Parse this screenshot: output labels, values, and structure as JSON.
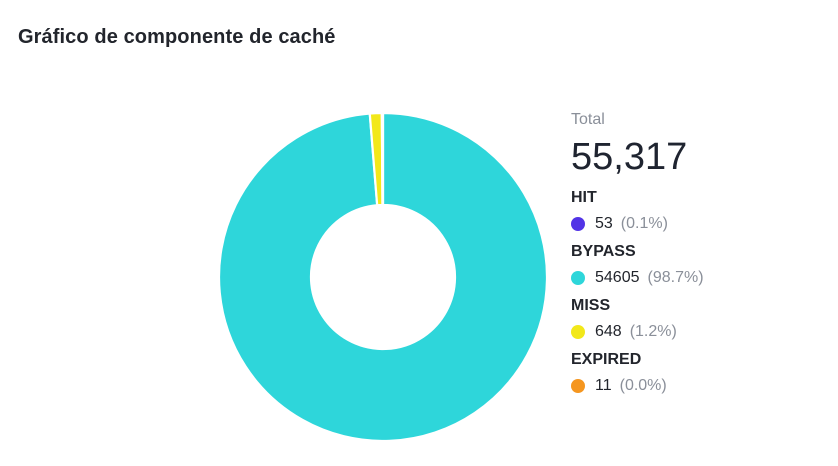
{
  "title": "Gráfico de componente de caché",
  "chart_data": {
    "type": "pie",
    "variant": "donut",
    "total_label": "Total",
    "total_value": "55,317",
    "legend_placement": "right",
    "slices": [
      {
        "name": "HIT",
        "value": 53,
        "value_label": "53",
        "percent_label": "(0.1%)",
        "color": "#5234e6"
      },
      {
        "name": "BYPASS",
        "value": 54605,
        "value_label": "54605",
        "percent_label": "(98.7%)",
        "color": "#2ed6da"
      },
      {
        "name": "MISS",
        "value": 648,
        "value_label": "648",
        "percent_label": "(1.2%)",
        "color": "#f2e81a"
      },
      {
        "name": "EXPIRED",
        "value": 11,
        "value_label": "11",
        "percent_label": "(0.0%)",
        "color": "#f5961f"
      }
    ]
  }
}
